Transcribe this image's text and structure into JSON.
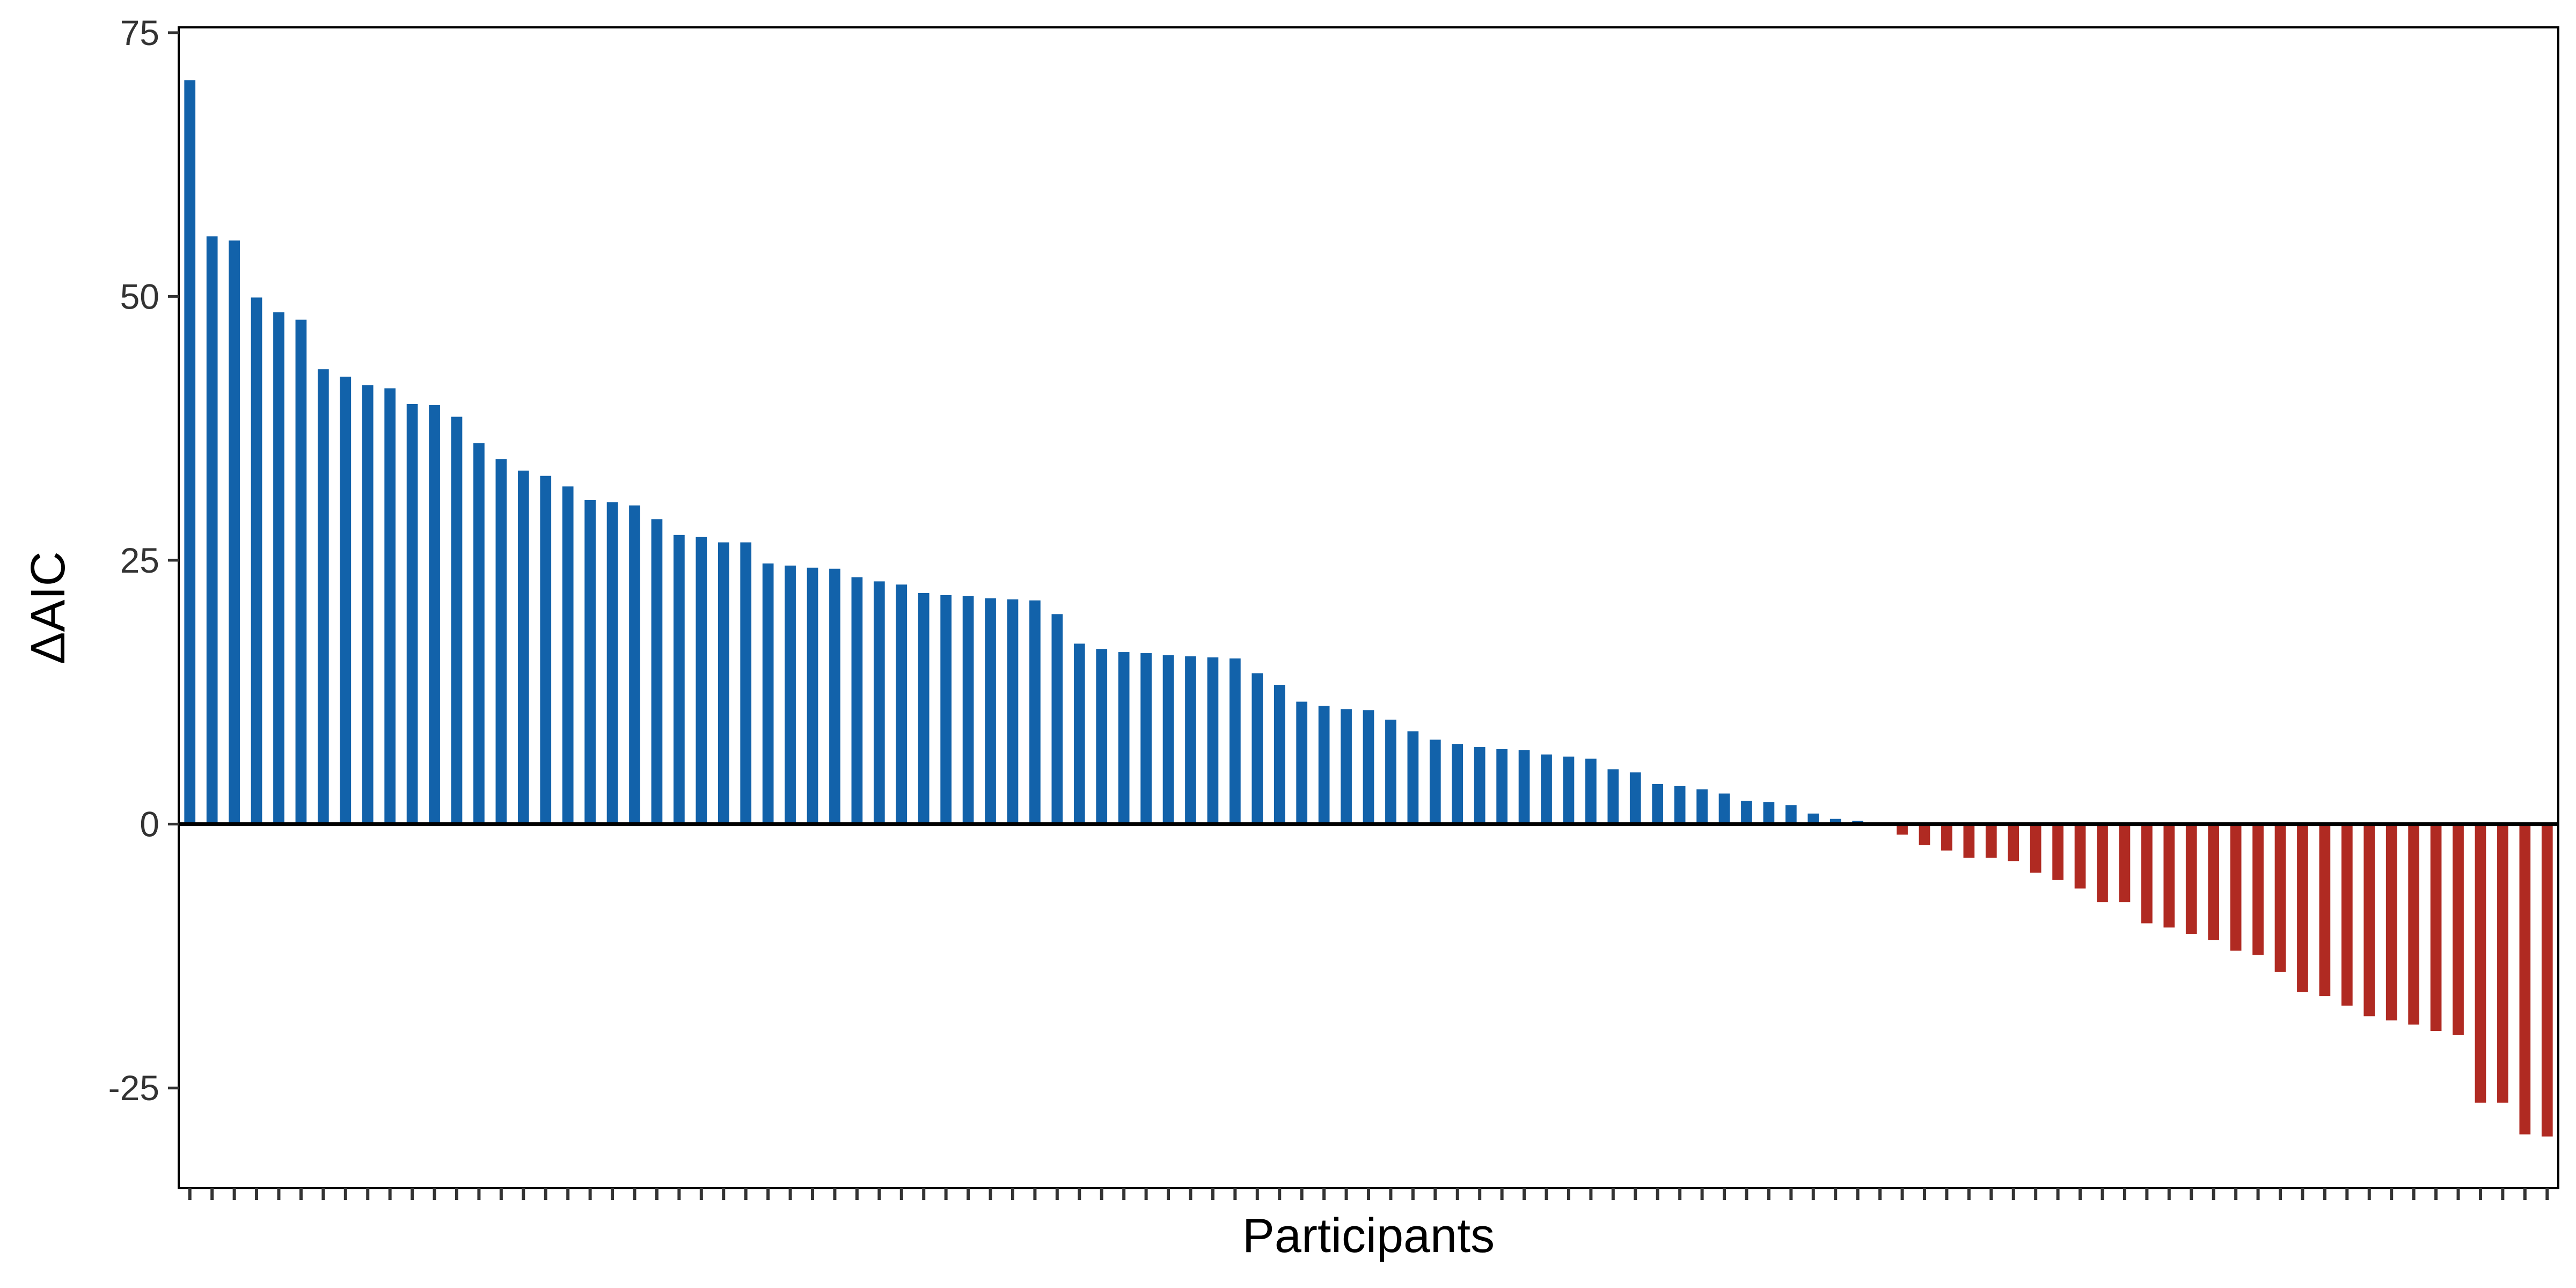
{
  "chart_data": {
    "type": "bar",
    "xlabel": "Participants",
    "ylabel": "ΔAIC",
    "ylim": [
      -34.5,
      75.5
    ],
    "yticks": [
      -25,
      0,
      25,
      50,
      75
    ],
    "grid": false,
    "legend": "none",
    "colors": {
      "positive": "#1262aa",
      "negative": "#b02a22",
      "zero_line": "#000000",
      "frame": "#000000"
    },
    "values": [
      70.5,
      55.7,
      55.3,
      49.9,
      48.5,
      47.8,
      43.1,
      42.4,
      41.6,
      41.3,
      39.8,
      39.7,
      38.6,
      36.1,
      34.6,
      33.5,
      33.0,
      32.0,
      30.7,
      30.5,
      30.2,
      28.9,
      27.4,
      27.2,
      26.7,
      26.7,
      24.7,
      24.5,
      24.3,
      24.2,
      23.4,
      23.0,
      22.7,
      21.9,
      21.7,
      21.6,
      21.4,
      21.3,
      21.2,
      19.9,
      17.1,
      16.6,
      16.3,
      16.2,
      16.0,
      15.9,
      15.8,
      15.7,
      14.3,
      13.2,
      11.6,
      11.2,
      10.9,
      10.8,
      9.9,
      8.8,
      8.0,
      7.6,
      7.3,
      7.1,
      7.0,
      6.6,
      6.4,
      6.2,
      5.2,
      4.9,
      3.8,
      3.6,
      3.3,
      2.9,
      2.2,
      2.1,
      1.8,
      1.0,
      0.5,
      0.3,
      0.0,
      -1.0,
      -2.0,
      -2.5,
      -3.2,
      -3.2,
      -3.5,
      -4.6,
      -5.3,
      -6.1,
      -7.4,
      -7.4,
      -9.4,
      -9.8,
      -10.4,
      -11.0,
      -12.0,
      -12.4,
      -14.0,
      -15.9,
      -16.3,
      -17.2,
      -18.2,
      -18.6,
      -19.0,
      -19.6,
      -20.0,
      -26.4,
      -26.4,
      -29.4,
      -29.6
    ]
  }
}
